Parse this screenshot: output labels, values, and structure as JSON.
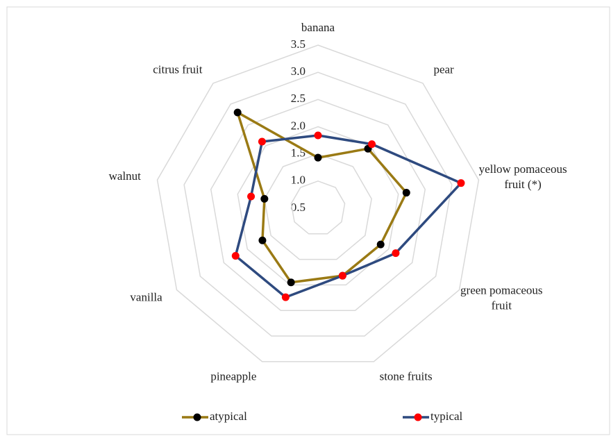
{
  "chart_data": {
    "type": "radar",
    "categories": [
      "banana",
      "pear",
      "yellow pomaceous fruit (*)",
      "green pomaceous fruit",
      "stone fruits",
      "pineapple",
      "vanilla",
      "walnut",
      "citrus fruit"
    ],
    "series": [
      {
        "name": "atypical",
        "color": "#9a7a14",
        "marker_color": "#000000",
        "values": [
          1.43,
          1.93,
          2.15,
          1.83,
          1.82,
          1.95,
          1.68,
          1.5,
          2.8
        ]
      },
      {
        "name": "typical",
        "color": "#2e4a7f",
        "marker_color": "#ff0000",
        "values": [
          1.84,
          2.04,
          3.17,
          2.15,
          1.82,
          2.24,
          2.25,
          1.75,
          2.1
        ]
      }
    ],
    "ylim": [
      0.5,
      3.5
    ],
    "yticks": [
      0.5,
      1.0,
      1.5,
      2.0,
      2.5,
      3.0,
      3.5
    ],
    "grid": true,
    "legend": "bottom"
  }
}
